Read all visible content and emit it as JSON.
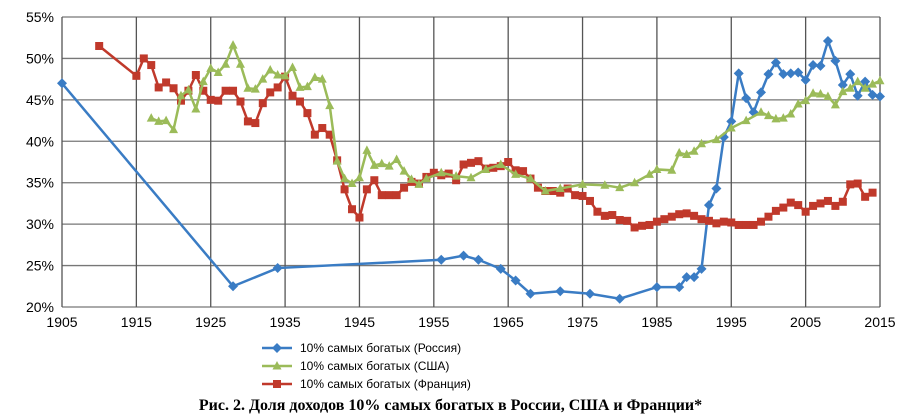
{
  "chart_data": {
    "type": "line",
    "title": "Рис. 2. Доля доходов 10% самых богатых в России, США и Франции*",
    "xlabel": "",
    "ylabel": "",
    "xlim": [
      1905,
      2015
    ],
    "ylim": [
      20,
      55
    ],
    "x_ticks": [
      "1905",
      "1915",
      "1925",
      "1935",
      "1945",
      "1955",
      "1965",
      "1975",
      "1985",
      "1995",
      "2005",
      "2015"
    ],
    "y_ticks": [
      "20%",
      "25%",
      "30%",
      "35%",
      "40%",
      "45%",
      "50%",
      "55%"
    ],
    "grid": true,
    "legend_position": "bottom",
    "series": [
      {
        "name": "10% самых богатых (Россия)",
        "color": "#3a7cc4",
        "marker": "diamond",
        "x": [
          1905,
          1928,
          1934,
          1956,
          1959,
          1961,
          1964,
          1966,
          1968,
          1972,
          1976,
          1980,
          1985,
          1988,
          1989,
          1990,
          1991,
          1992,
          1993,
          1994,
          1995,
          1996,
          1997,
          1998,
          1999,
          2000,
          2001,
          2002,
          2003,
          2004,
          2005,
          2006,
          2007,
          2008,
          2009,
          2010,
          2011,
          2012,
          2013,
          2014,
          2015
        ],
        "y": [
          47.0,
          22.5,
          24.7,
          25.7,
          26.2,
          25.7,
          24.6,
          23.2,
          21.6,
          21.9,
          21.6,
          21.0,
          22.4,
          22.4,
          23.6,
          23.6,
          24.6,
          32.3,
          34.3,
          40.5,
          42.4,
          48.2,
          45.2,
          43.5,
          45.9,
          48.1,
          49.5,
          48.1,
          48.2,
          48.3,
          47.4,
          49.2,
          49.1,
          52.1,
          49.7,
          46.8,
          48.1,
          45.5,
          47.2,
          45.6,
          45.4
        ]
      },
      {
        "name": "10% самых богатых (США)",
        "color": "#9bbb59",
        "marker": "triangle",
        "x": [
          1917,
          1918,
          1919,
          1920,
          1921,
          1922,
          1923,
          1924,
          1925,
          1926,
          1927,
          1928,
          1929,
          1930,
          1931,
          1932,
          1933,
          1934,
          1935,
          1936,
          1937,
          1938,
          1939,
          1940,
          1941,
          1942,
          1943,
          1944,
          1945,
          1946,
          1947,
          1948,
          1949,
          1950,
          1951,
          1952,
          1953,
          1954,
          1956,
          1958,
          1960,
          1962,
          1964,
          1966,
          1968,
          1970,
          1972,
          1975,
          1978,
          1980,
          1982,
          1984,
          1985,
          1987,
          1988,
          1989,
          1990,
          1991,
          1993,
          1995,
          1997,
          1999,
          2000,
          2001,
          2002,
          2003,
          2004,
          2005,
          2006,
          2007,
          2008,
          2009,
          2010,
          2011,
          2012,
          2013,
          2014,
          2015
        ],
        "y": [
          42.8,
          42.4,
          42.5,
          41.4,
          45.5,
          46.2,
          43.9,
          47.2,
          48.8,
          48.3,
          49.3,
          51.6,
          49.3,
          46.4,
          46.3,
          47.5,
          48.6,
          48.0,
          47.9,
          48.9,
          46.5,
          46.6,
          47.7,
          47.5,
          44.3,
          37.6,
          35.5,
          34.9,
          35.6,
          38.9,
          37.1,
          37.3,
          37.0,
          37.8,
          36.4,
          35.4,
          34.8,
          35.5,
          36.2,
          35.8,
          35.6,
          36.6,
          37.2,
          36.0,
          35.5,
          34.0,
          34.3,
          34.8,
          34.7,
          34.4,
          35.0,
          36.0,
          36.6,
          36.5,
          38.6,
          38.4,
          38.8,
          39.7,
          40.2,
          41.6,
          42.5,
          43.5,
          43.1,
          42.7,
          42.8,
          43.3,
          44.5,
          44.9,
          45.8,
          45.7,
          45.4,
          44.4,
          46.0,
          46.4,
          47.2,
          46.4,
          46.9,
          47.3
        ]
      },
      {
        "name": "10% самых богатых (Франция)",
        "color": "#c0392b",
        "marker": "square",
        "x": [
          1910,
          1915,
          1916,
          1917,
          1918,
          1919,
          1920,
          1921,
          1922,
          1923,
          1924,
          1925,
          1926,
          1927,
          1928,
          1929,
          1930,
          1931,
          1932,
          1933,
          1934,
          1935,
          1936,
          1937,
          1938,
          1939,
          1940,
          1941,
          1942,
          1943,
          1944,
          1945,
          1946,
          1947,
          1948,
          1949,
          1950,
          1951,
          1952,
          1953,
          1954,
          1955,
          1956,
          1957,
          1958,
          1959,
          1960,
          1961,
          1962,
          1963,
          1964,
          1965,
          1966,
          1967,
          1968,
          1969,
          1970,
          1971,
          1972,
          1973,
          1974,
          1975,
          1976,
          1977,
          1978,
          1979,
          1980,
          1981,
          1982,
          1983,
          1984,
          1985,
          1986,
          1987,
          1988,
          1989,
          1990,
          1991,
          1992,
          1993,
          1994,
          1995,
          1996,
          1997,
          1998,
          1999,
          2000,
          2001,
          2002,
          2003,
          2004,
          2005,
          2006,
          2007,
          2008,
          2009,
          2010,
          2011,
          2012,
          2013,
          2014
        ],
        "y": [
          51.5,
          47.9,
          50.0,
          49.2,
          46.5,
          47.1,
          46.4,
          44.9,
          46.1,
          48.0,
          46.1,
          45.0,
          44.9,
          46.1,
          46.1,
          44.8,
          42.4,
          42.2,
          44.6,
          45.9,
          46.5,
          47.8,
          45.5,
          44.8,
          43.4,
          40.8,
          41.6,
          40.8,
          37.7,
          34.2,
          31.8,
          30.8,
          34.2,
          35.3,
          33.5,
          33.5,
          33.5,
          34.4,
          35.1,
          34.9,
          35.7,
          36.2,
          35.9,
          36.1,
          35.3,
          37.2,
          37.4,
          37.6,
          36.7,
          36.8,
          37.0,
          37.5,
          36.5,
          36.4,
          35.5,
          34.4,
          34.0,
          34.0,
          33.8,
          34.3,
          33.5,
          33.4,
          32.8,
          31.5,
          31.0,
          31.1,
          30.5,
          30.4,
          29.6,
          29.8,
          29.9,
          30.3,
          30.6,
          30.9,
          31.2,
          31.3,
          31.0,
          30.6,
          30.4,
          30.1,
          30.3,
          30.2,
          29.9,
          29.9,
          29.9,
          30.3,
          30.9,
          31.6,
          32.0,
          32.6,
          32.3,
          31.5,
          32.2,
          32.5,
          32.8,
          32.2,
          32.7,
          34.8,
          34.9,
          33.3,
          33.8
        ]
      }
    ]
  }
}
